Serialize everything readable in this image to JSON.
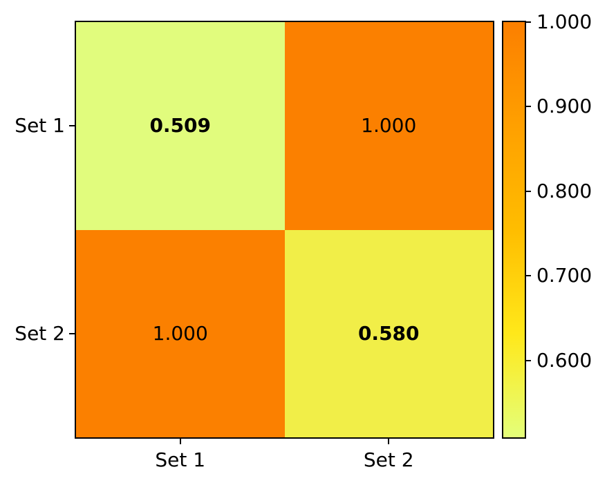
{
  "figure": {
    "background_color": "#ffffff",
    "text_color": "#000000"
  },
  "chart_data": {
    "type": "heatmap",
    "x_categories": [
      "Set 1",
      "Set 2"
    ],
    "y_categories": [
      "Set 1",
      "Set 2"
    ],
    "values": [
      [
        0.509,
        1.0
      ],
      [
        1.0,
        0.58
      ]
    ],
    "cell_labels": [
      [
        "0.509",
        "1.000"
      ],
      [
        "1.000",
        "0.580"
      ]
    ],
    "bold_cells": [
      [
        true,
        false
      ],
      [
        false,
        true
      ]
    ],
    "cell_colors": [
      [
        "#e1fc7d",
        "#fb8000"
      ],
      [
        "#fb8000",
        "#f1ee48"
      ]
    ],
    "vmin": 0.509,
    "vmax": 1.0,
    "colormap": {
      "name": "Wistia",
      "stops": [
        "#e4ff7a",
        "#ffe81a",
        "#ffbd00",
        "#ffa000",
        "#fc7f00"
      ]
    },
    "colorbar": {
      "tick_values": [
        1.0,
        0.9,
        0.8,
        0.7,
        0.6
      ],
      "tick_labels": [
        "1.000",
        "0.900",
        "0.800",
        "0.700",
        "0.600"
      ]
    },
    "grid": false,
    "legend": false
  }
}
